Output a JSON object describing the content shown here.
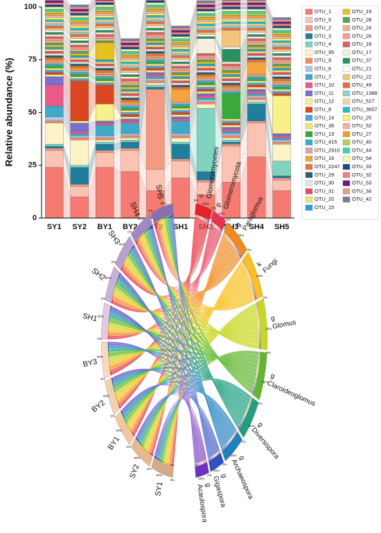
{
  "chart_data": [
    {
      "type": "bar",
      "stacked": true,
      "ylabel": "Relative abundance (%)",
      "categories": [
        "SY1",
        "SY2",
        "BY1",
        "BY2",
        "BY3",
        "SH1",
        "SH2",
        "SH3",
        "SH4",
        "SH5"
      ],
      "ylim": [
        0,
        100
      ],
      "yticks": [
        0,
        25,
        50,
        75,
        100
      ],
      "series": [
        {
          "name": "OTU_1",
          "color": "#f47a72",
          "values": [
            24,
            10,
            24,
            22,
            13,
            19,
            11,
            17,
            29,
            13
          ]
        },
        {
          "name": "OTU_5",
          "color": "#fbc3b3",
          "values": [
            8,
            5,
            7,
            10,
            10,
            8,
            6,
            17,
            16,
            5
          ]
        },
        {
          "name": "OTU_2",
          "color": "#f59a80",
          "values": [
            1,
            1,
            1,
            1,
            38,
            1,
            1,
            1,
            1,
            1
          ]
        },
        {
          "name": "OTU_3",
          "color": "#1f7f9a",
          "values": [
            1,
            8,
            3,
            3,
            1,
            7,
            4,
            1,
            8,
            1
          ]
        },
        {
          "name": "OTU_4",
          "color": "#7fd3c0",
          "values": [
            1,
            1,
            1,
            1,
            1,
            1,
            30,
            1,
            1,
            7
          ]
        },
        {
          "name": "OTU_95",
          "color": "#fdf3c7",
          "values": [
            10,
            12,
            1,
            1,
            1,
            2,
            2,
            1,
            1,
            8
          ]
        },
        {
          "name": "OTU_9",
          "color": "#f28a6a",
          "values": [
            1,
            1,
            1,
            1,
            1,
            1,
            1,
            1,
            1,
            1
          ]
        },
        {
          "name": "OTU_6",
          "color": "#b0c4de",
          "values": [
            2,
            1,
            1,
            1,
            1,
            1,
            1,
            1,
            1,
            1
          ]
        },
        {
          "name": "OTU_7",
          "color": "#3fa9c8",
          "values": [
            5,
            1,
            5,
            5,
            1,
            6,
            1,
            1,
            1,
            1
          ]
        },
        {
          "name": "OTU_10",
          "color": "#e85a8a",
          "values": [
            10,
            1,
            1,
            1,
            1,
            1,
            1,
            1,
            1,
            1
          ]
        },
        {
          "name": "OTU_11",
          "color": "#7b6fd0",
          "values": [
            4,
            4,
            1,
            1,
            1,
            1,
            1,
            1,
            1,
            1
          ]
        },
        {
          "name": "OTU_12",
          "color": "#f8f08a",
          "values": [
            1,
            1,
            8,
            1,
            1,
            1,
            1,
            1,
            1,
            18
          ]
        },
        {
          "name": "OTU_8",
          "color": "#d9461f",
          "values": [
            1,
            19,
            9,
            1,
            1,
            1,
            1,
            1,
            1,
            1
          ]
        },
        {
          "name": "OTU_14",
          "color": "#4aa3df",
          "values": [
            1,
            1,
            1,
            1,
            1,
            1,
            1,
            1,
            1,
            1
          ]
        },
        {
          "name": "OTU_36",
          "color": "#f7e27a",
          "values": [
            1,
            1,
            1,
            1,
            1,
            1,
            1,
            1,
            1,
            1
          ]
        },
        {
          "name": "OTU_13",
          "color": "#3aa83a",
          "values": [
            1,
            1,
            1,
            1,
            1,
            1,
            1,
            12,
            1,
            1
          ]
        },
        {
          "name": "OTU_415",
          "color": "#2cb5c9",
          "values": [
            1,
            1,
            1,
            1,
            1,
            1,
            1,
            1,
            1,
            1
          ]
        },
        {
          "name": "OTU_2910",
          "color": "#e0a0a0",
          "values": [
            1,
            1,
            1,
            1,
            1,
            1,
            1,
            1,
            1,
            1
          ]
        },
        {
          "name": "OTU_16",
          "color": "#f4a340",
          "values": [
            1,
            1,
            1,
            1,
            1,
            6,
            1,
            1,
            6,
            1
          ]
        },
        {
          "name": "OTU_2247",
          "color": "#e8743b",
          "values": [
            1,
            1,
            1,
            1,
            1,
            1,
            1,
            1,
            1,
            1
          ]
        },
        {
          "name": "OTU_29",
          "color": "#2a5f6b",
          "values": [
            1,
            1,
            1,
            1,
            1,
            1,
            1,
            1,
            1,
            1
          ]
        },
        {
          "name": "OTU_30",
          "color": "#e8e8e8",
          "values": [
            1,
            1,
            1,
            1,
            1,
            1,
            1,
            1,
            1,
            1
          ]
        },
        {
          "name": "OTU_31",
          "color": "#e0505a",
          "values": [
            1,
            1,
            1,
            1,
            1,
            1,
            1,
            1,
            1,
            1
          ]
        },
        {
          "name": "OTU_20",
          "color": "#f3e27a",
          "values": [
            1,
            1,
            1,
            1,
            1,
            1,
            1,
            1,
            1,
            1
          ]
        },
        {
          "name": "OTU_15",
          "color": "#2a9fd6",
          "values": [
            1,
            1,
            1,
            1,
            1,
            1,
            1,
            1,
            1,
            1
          ]
        },
        {
          "name": "OTU_19",
          "color": "#e8c21a",
          "values": [
            1,
            1,
            8,
            1,
            1,
            1,
            1,
            1,
            1,
            1
          ]
        },
        {
          "name": "OTU_28",
          "color": "#5aa05a",
          "values": [
            1,
            1,
            1,
            1,
            1,
            1,
            1,
            1,
            1,
            1
          ]
        },
        {
          "name": "OTU_24",
          "color": "#f0b090",
          "values": [
            1,
            1,
            1,
            1,
            1,
            1,
            1,
            1,
            1,
            1
          ]
        },
        {
          "name": "OTU_26",
          "color": "#f0a090",
          "values": [
            1,
            1,
            1,
            1,
            1,
            1,
            1,
            1,
            1,
            1
          ]
        },
        {
          "name": "OTU_18",
          "color": "#e06060",
          "values": [
            1,
            1,
            1,
            1,
            1,
            1,
            1,
            1,
            1,
            1
          ]
        },
        {
          "name": "OTU_17",
          "color": "#f4f0dc",
          "values": [
            1,
            1,
            1,
            1,
            1,
            1,
            7,
            1,
            1,
            1
          ]
        },
        {
          "name": "OTU_37",
          "color": "#2a9060",
          "values": [
            1,
            1,
            1,
            1,
            1,
            1,
            1,
            6,
            1,
            1
          ]
        },
        {
          "name": "OTU_21",
          "color": "#fafafa",
          "values": [
            1,
            1,
            1,
            1,
            1,
            1,
            1,
            1,
            1,
            1
          ]
        },
        {
          "name": "OTU_22",
          "color": "#f3c57a",
          "values": [
            1,
            1,
            1,
            1,
            1,
            1,
            1,
            8,
            1,
            1
          ]
        },
        {
          "name": "OTU_49",
          "color": "#f36a3a",
          "values": [
            1,
            1,
            1,
            1,
            1,
            1,
            1,
            1,
            1,
            1
          ]
        },
        {
          "name": "OTU_1388",
          "color": "#90d0d0",
          "values": [
            1,
            1,
            1,
            1,
            1,
            1,
            1,
            1,
            1,
            1
          ]
        },
        {
          "name": "OTU_527",
          "color": "#f8d0a0",
          "values": [
            1,
            1,
            1,
            1,
            1,
            1,
            1,
            1,
            1,
            1
          ]
        },
        {
          "name": "OTU_3657",
          "color": "#20c0c0",
          "values": [
            1,
            1,
            1,
            1,
            1,
            1,
            1,
            1,
            1,
            1
          ]
        },
        {
          "name": "OTU_25",
          "color": "#f8f070",
          "values": [
            1,
            1,
            1,
            1,
            1,
            1,
            1,
            1,
            1,
            1
          ]
        },
        {
          "name": "OTU_52",
          "color": "#f4b0a0",
          "values": [
            1,
            1,
            1,
            1,
            1,
            1,
            1,
            1,
            1,
            1
          ]
        },
        {
          "name": "OTU_27",
          "color": "#f0a030",
          "values": [
            1,
            1,
            1,
            1,
            1,
            1,
            1,
            1,
            1,
            1
          ]
        },
        {
          "name": "OTU_40",
          "color": "#b0d050",
          "values": [
            1,
            1,
            1,
            1,
            1,
            1,
            1,
            1,
            1,
            1
          ]
        },
        {
          "name": "OTU_44",
          "color": "#40d0b0",
          "values": [
            1,
            1,
            1,
            1,
            1,
            1,
            1,
            1,
            1,
            1
          ]
        },
        {
          "name": "OTU_54",
          "color": "#f8f8a0",
          "values": [
            1,
            1,
            1,
            1,
            1,
            1,
            1,
            1,
            1,
            1
          ]
        },
        {
          "name": "OTU_33",
          "color": "#1a4a8a",
          "values": [
            1,
            1,
            1,
            1,
            1,
            1,
            1,
            1,
            1,
            1
          ]
        },
        {
          "name": "OTU_32",
          "color": "#f08080",
          "values": [
            1,
            1,
            1,
            1,
            1,
            1,
            1,
            1,
            1,
            1
          ]
        },
        {
          "name": "OTU_53",
          "color": "#6a1a8a",
          "values": [
            1,
            1,
            1,
            1,
            1,
            1,
            1,
            1,
            1,
            1
          ]
        },
        {
          "name": "OTU_34",
          "color": "#e0a080",
          "values": [
            1,
            1,
            1,
            1,
            1,
            1,
            1,
            1,
            1,
            1
          ]
        },
        {
          "name": "OTU_42",
          "color": "#7a7aa0",
          "values": [
            1,
            1,
            1,
            1,
            1,
            1,
            1,
            1,
            1,
            1
          ]
        }
      ]
    },
    {
      "type": "chord",
      "arc_tick_labels": [
        "0%",
        "60%"
      ],
      "sources": [
        {
          "name": "SY1",
          "color": "#d4a98a"
        },
        {
          "name": "SY2",
          "color": "#e8b890"
        },
        {
          "name": "BY1",
          "color": "#f0c8a0"
        },
        {
          "name": "BY2",
          "color": "#f4d0b0"
        },
        {
          "name": "BY3",
          "color": "#f8d8c0"
        },
        {
          "name": "SH1",
          "color": "#e4c8e4"
        },
        {
          "name": "SH2",
          "color": "#c8b0d8"
        },
        {
          "name": "SH3",
          "color": "#b8a0d0"
        },
        {
          "name": "SH4",
          "color": "#a088c0"
        },
        {
          "name": "SH5",
          "color": "#8870b0"
        }
      ],
      "targets": [
        {
          "rank": "c",
          "name": "Glomeromycetes",
          "color": "#e8202a"
        },
        {
          "rank": "p",
          "name": "Glomeromycota",
          "color": "#e83050"
        },
        {
          "rank": "g",
          "name": "Paraglomus",
          "color": "#f08a20"
        },
        {
          "rank": "k",
          "name": "Fungi",
          "color": "#f8c020"
        },
        {
          "rank": "g",
          "name": "Glomus",
          "color": "#c8d820"
        },
        {
          "rank": "g",
          "name": "Claroideoglomus",
          "color": "#60b830"
        },
        {
          "rank": "g",
          "name": "Diversispora",
          "color": "#20a080"
        },
        {
          "rank": "g",
          "name": "Archaeospora",
          "color": "#2080c0"
        },
        {
          "rank": "g",
          "name": "Gigaspora",
          "color": "#3050c0"
        },
        {
          "rank": "g",
          "name": "Acaulospora",
          "color": "#7030c0"
        }
      ],
      "matrix": [
        [
          8,
          6,
          10,
          14,
          14,
          12,
          12,
          10,
          7,
          7
        ],
        [
          7,
          6,
          12,
          13,
          15,
          13,
          12,
          9,
          6,
          7
        ],
        [
          8,
          7,
          11,
          14,
          13,
          14,
          11,
          10,
          6,
          6
        ],
        [
          7,
          6,
          12,
          15,
          14,
          13,
          12,
          9,
          6,
          6
        ],
        [
          8,
          7,
          12,
          14,
          14,
          14,
          11,
          9,
          6,
          5
        ],
        [
          6,
          6,
          11,
          13,
          14,
          14,
          12,
          10,
          7,
          7
        ],
        [
          7,
          5,
          13,
          14,
          13,
          13,
          12,
          10,
          7,
          6
        ],
        [
          8,
          6,
          12,
          13,
          15,
          13,
          11,
          10,
          6,
          6
        ],
        [
          7,
          6,
          11,
          14,
          14,
          14,
          12,
          9,
          7,
          6
        ],
        [
          8,
          7,
          12,
          13,
          14,
          13,
          12,
          10,
          6,
          5
        ]
      ]
    }
  ]
}
